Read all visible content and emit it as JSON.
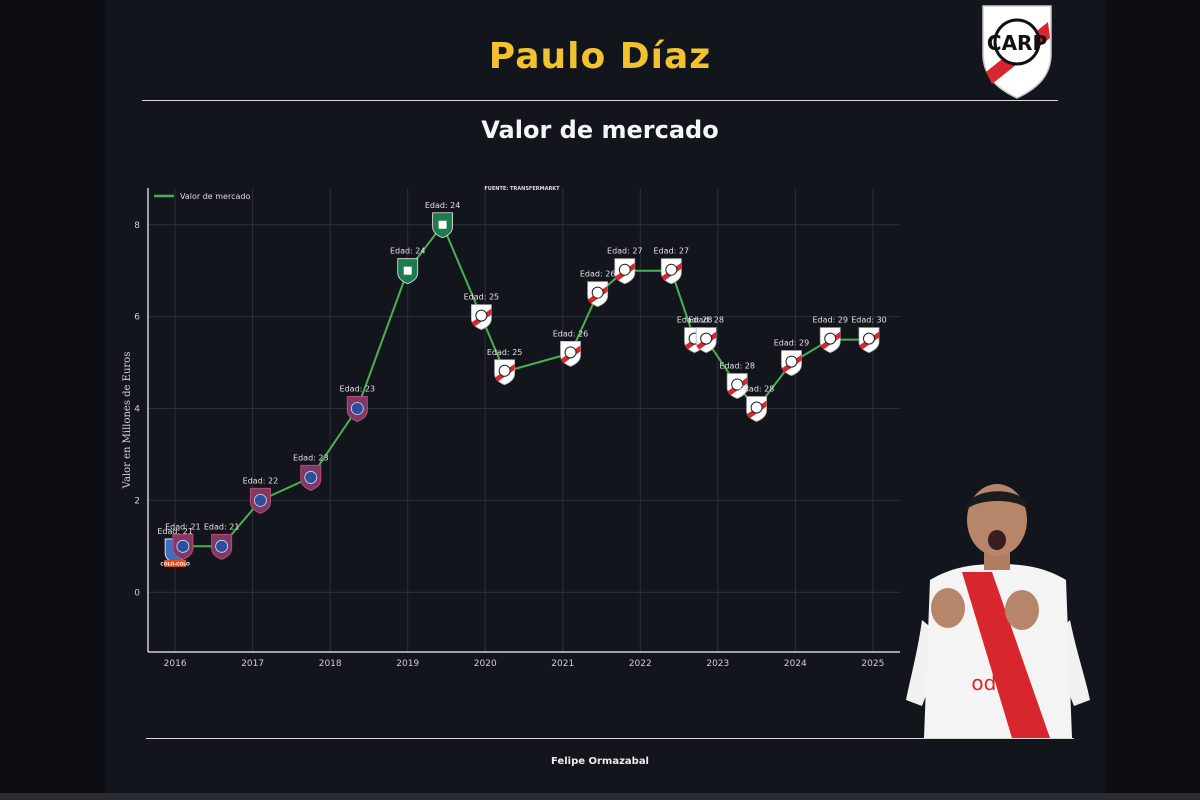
{
  "header": {
    "player_name": "Paulo Díaz",
    "subtitle": "Valor de mercado",
    "author": "Felipe Ormazabal"
  },
  "logo": {
    "text": "CARP",
    "icon": "river-plate-crest-icon"
  },
  "photo": {
    "icon": "player-photo-icon"
  },
  "colors": {
    "background": "#13151d",
    "title": "#f2c230",
    "line": "#4caf50",
    "grid": "#2c2f3a",
    "river_red": "#d7262d",
    "san_lorenzo": "#7b3a6a",
    "al_ahli": "#1f7a4d",
    "colo_colo": "#3a6fc2"
  },
  "chart_data": {
    "type": "line",
    "title": "",
    "source_note": "FUENTE: TRANSFERMARKT",
    "xlabel": "",
    "ylabel": "Valor en Millones de Euros",
    "xlim": [
      2015.65,
      2025.35
    ],
    "ylim": [
      -1.3,
      8.8
    ],
    "x_ticks": [
      2016,
      2017,
      2018,
      2019,
      2020,
      2021,
      2022,
      2023,
      2024,
      2025
    ],
    "y_ticks": [
      0,
      2,
      4,
      6,
      8
    ],
    "grid": true,
    "legend_position": "top-left",
    "series": [
      {
        "name": "Valor de mercado",
        "color": "#4caf50",
        "points": [
          {
            "x": 2016.0,
            "y": 0.9,
            "label": "Edad: 21",
            "club": "colo-colo"
          },
          {
            "x": 2016.1,
            "y": 1.0,
            "label": "Edad: 21",
            "club": "san-lorenzo"
          },
          {
            "x": 2016.6,
            "y": 1.0,
            "label": "Edad: 21",
            "club": "san-lorenzo"
          },
          {
            "x": 2017.1,
            "y": 2.0,
            "label": "Edad: 22",
            "club": "san-lorenzo"
          },
          {
            "x": 2017.75,
            "y": 2.5,
            "label": "Edad: 23",
            "club": "san-lorenzo"
          },
          {
            "x": 2018.35,
            "y": 4.0,
            "label": "Edad: 23",
            "club": "san-lorenzo"
          },
          {
            "x": 2019.0,
            "y": 7.0,
            "label": "Edad: 24",
            "club": "al-ahli"
          },
          {
            "x": 2019.45,
            "y": 8.0,
            "label": "Edad: 24",
            "club": "al-ahli"
          },
          {
            "x": 2019.95,
            "y": 6.0,
            "label": "Edad: 25",
            "club": "river-plate"
          },
          {
            "x": 2020.25,
            "y": 4.8,
            "label": "Edad: 25",
            "club": "river-plate"
          },
          {
            "x": 2021.1,
            "y": 5.2,
            "label": "Edad: 26",
            "club": "river-plate"
          },
          {
            "x": 2021.45,
            "y": 6.5,
            "label": "Edad: 26",
            "club": "river-plate"
          },
          {
            "x": 2021.8,
            "y": 7.0,
            "label": "Edad: 27",
            "club": "river-plate"
          },
          {
            "x": 2022.4,
            "y": 7.0,
            "label": "Edad: 27",
            "club": "river-plate"
          },
          {
            "x": 2022.7,
            "y": 5.5,
            "label": "Edad: 28",
            "club": "river-plate"
          },
          {
            "x": 2022.85,
            "y": 5.5,
            "label": "Edad: 28",
            "club": "river-plate"
          },
          {
            "x": 2023.25,
            "y": 4.5,
            "label": "Edad: 28",
            "club": "river-plate"
          },
          {
            "x": 2023.5,
            "y": 4.0,
            "label": "Edad: 28",
            "club": "river-plate"
          },
          {
            "x": 2023.95,
            "y": 5.0,
            "label": "Edad: 29",
            "club": "river-plate"
          },
          {
            "x": 2024.45,
            "y": 5.5,
            "label": "Edad: 29",
            "club": "river-plate"
          },
          {
            "x": 2024.95,
            "y": 5.5,
            "label": "Edad: 30",
            "club": "river-plate"
          }
        ]
      }
    ],
    "clubs": {
      "colo-colo": {
        "icon": "colo-colo-crest-icon",
        "color": "#3a6fc2",
        "text": "COLO-COLO"
      },
      "san-lorenzo": {
        "icon": "san-lorenzo-crest-icon",
        "color": "#7b3a6a"
      },
      "al-ahli": {
        "icon": "al-ahli-crest-icon",
        "color": "#1f7a4d"
      },
      "river-plate": {
        "icon": "river-plate-crest-icon",
        "color": "#d7262d"
      }
    }
  }
}
